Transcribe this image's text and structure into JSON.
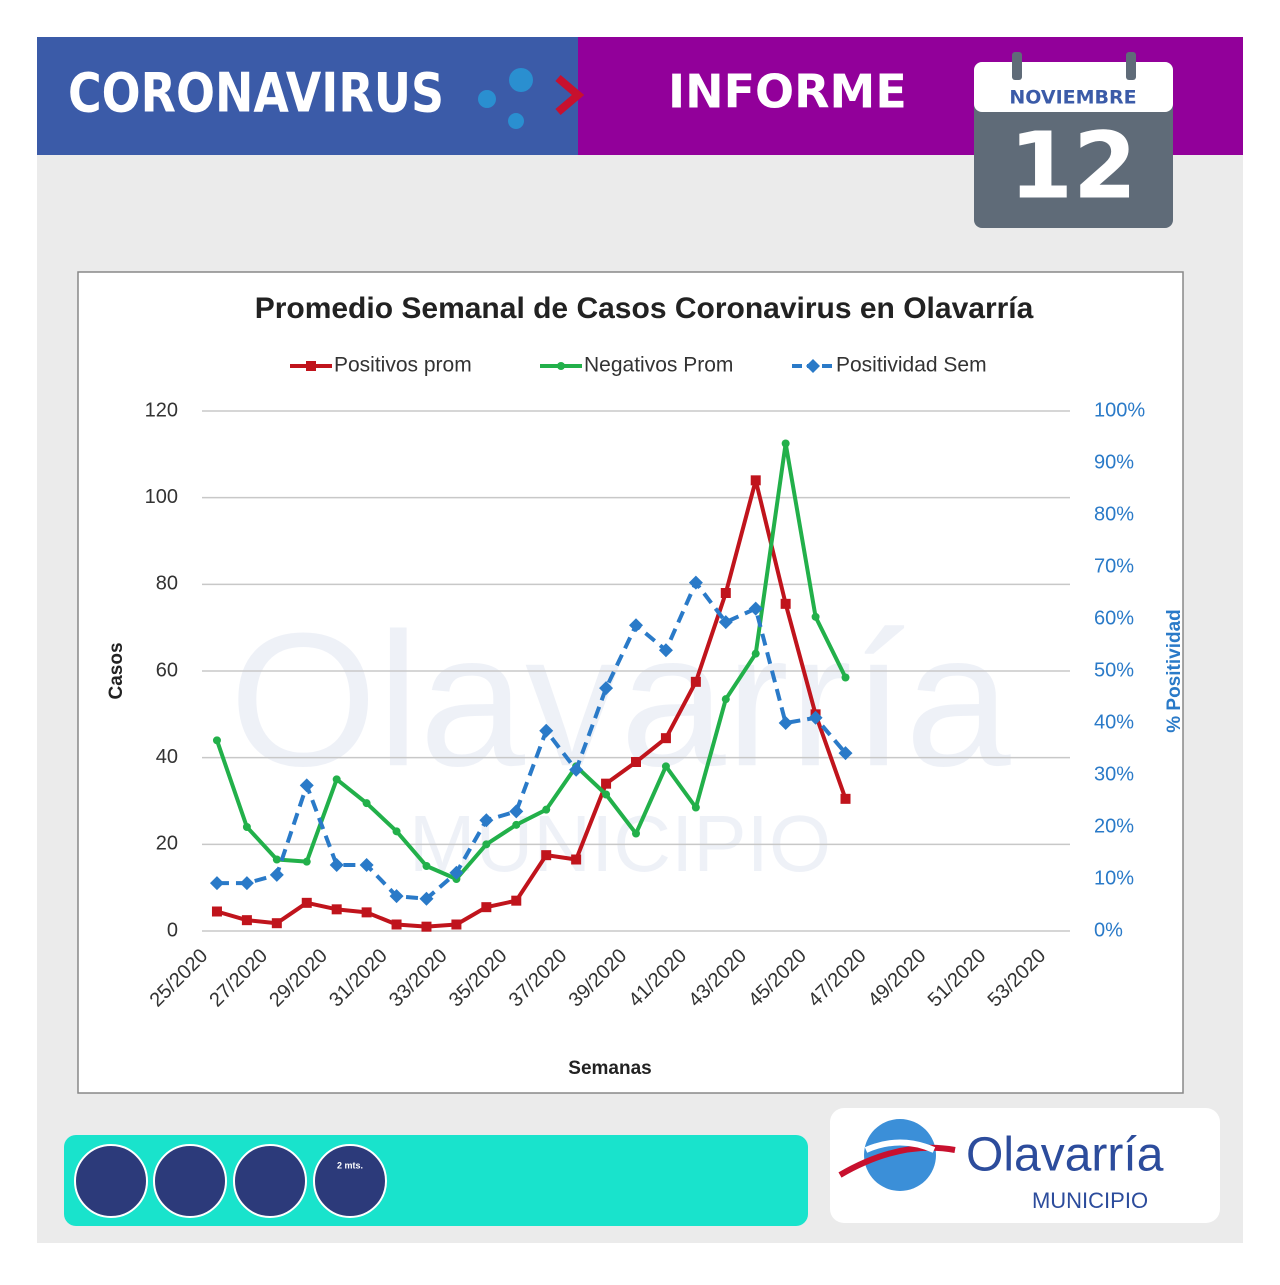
{
  "header": {
    "topic": "CORONAVIRUS",
    "report": "INFORME",
    "month": "NOVIEMBRE",
    "day": "12"
  },
  "logo": {
    "name": "Olavarría",
    "sub": "MUNICIPIO"
  },
  "icons": {
    "distance": "2 mts."
  },
  "chart_data": {
    "type": "line",
    "title": "Promedio Semanal de Casos Coronavirus en Olavarría",
    "x_label": "Semanas",
    "y_label": "Casos",
    "y2_label": "% Positividad",
    "categories": [
      "25/2020",
      null,
      "27/2020",
      null,
      "29/2020",
      null,
      "31/2020",
      null,
      "33/2020",
      null,
      "35/2020",
      null,
      "37/2020",
      null,
      "39/2020",
      null,
      "41/2020",
      null,
      "43/2020",
      null,
      "45/2020",
      null,
      "47/2020",
      null,
      "49/2020",
      null,
      "51/2020",
      null,
      "53/2020"
    ],
    "ylim": [
      0,
      120
    ],
    "yticks": [
      0,
      20,
      40,
      60,
      80,
      100,
      120
    ],
    "y2lim": [
      0,
      100
    ],
    "y2ticks": [
      {
        "value": 0,
        "label": "0%"
      },
      {
        "value": 10,
        "label": "10%"
      },
      {
        "value": 20,
        "label": "20%"
      },
      {
        "value": 30,
        "label": "30%"
      },
      {
        "value": 40,
        "label": "40%"
      },
      {
        "value": 50,
        "label": "50%"
      },
      {
        "value": 60,
        "label": "60%"
      },
      {
        "value": 70,
        "label": "70%"
      },
      {
        "value": 80,
        "label": "80%"
      },
      {
        "value": 90,
        "label": "90%"
      },
      {
        "value": 100,
        "label": "100%"
      }
    ],
    "grid": true,
    "series": [
      {
        "name": "Positivos prom",
        "color": "#c0141c",
        "marker": "square",
        "dashed": false,
        "values": [
          4.5,
          2.5,
          1.8,
          6.5,
          5,
          4.3,
          1.5,
          1,
          1.5,
          5.5,
          7,
          17.5,
          16.5,
          34,
          39,
          44.5,
          57.5,
          78,
          104,
          75.5,
          50,
          30.5,
          null,
          null,
          null,
          null,
          null,
          null,
          null
        ]
      },
      {
        "name": "Negativos Prom",
        "color": "#22b04a",
        "marker": "circle",
        "dashed": false,
        "values": [
          44,
          24,
          16.5,
          16,
          35,
          29.5,
          23,
          15,
          12,
          20,
          24.5,
          28,
          38,
          31.5,
          22.5,
          38,
          28.5,
          53.5,
          64,
          112.5,
          72.5,
          58.5,
          null,
          null,
          null,
          null,
          null,
          null,
          null
        ]
      },
      {
        "name": "Positividad Sem",
        "color": "#2a7ac8",
        "marker": "diamond",
        "dashed": true,
        "axis": "y2",
        "values": [
          9.2,
          9.2,
          10.8,
          28,
          12.7,
          12.7,
          6.7,
          6.2,
          11.2,
          21.3,
          23,
          38.5,
          31,
          46.7,
          58.8,
          54,
          67,
          59.4,
          62,
          40,
          41,
          34.2,
          null,
          null,
          null,
          null,
          null,
          null,
          null
        ]
      }
    ]
  }
}
